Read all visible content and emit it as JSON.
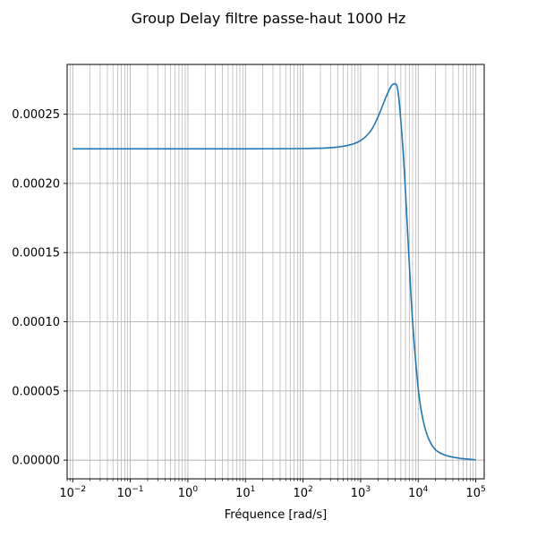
{
  "chart_data": {
    "type": "line",
    "title": "Group Delay filtre passe-haut 1000 Hz",
    "xlabel": "Fréquence [rad/s]",
    "ylabel": "",
    "x_scale": "log",
    "xlim": [
      0.008,
      140000
    ],
    "ylim": [
      -1.35e-05,
      0.000286
    ],
    "grid": "major and minor",
    "line_color": "#1f77b4",
    "x_ticks": [
      {
        "value": 0.01,
        "base": "10",
        "exp": "−2"
      },
      {
        "value": 0.1,
        "base": "10",
        "exp": "−1"
      },
      {
        "value": 1,
        "base": "10",
        "exp": "0"
      },
      {
        "value": 10,
        "base": "10",
        "exp": "1"
      },
      {
        "value": 100,
        "base": "10",
        "exp": "2"
      },
      {
        "value": 1000,
        "base": "10",
        "exp": "3"
      },
      {
        "value": 10000,
        "base": "10",
        "exp": "4"
      },
      {
        "value": 100000,
        "base": "10",
        "exp": "5"
      }
    ],
    "y_ticks": [
      {
        "value": 0.0,
        "label": "0.00000"
      },
      {
        "value": 5e-05,
        "label": "0.00005"
      },
      {
        "value": 0.0001,
        "label": "0.00010"
      },
      {
        "value": 0.00015,
        "label": "0.00015"
      },
      {
        "value": 0.0002,
        "label": "0.00020"
      },
      {
        "value": 0.00025,
        "label": "0.00025"
      }
    ],
    "series": [
      {
        "x": [
          0.01,
          0.1,
          1,
          10,
          100,
          300,
          600,
          1000,
          1500,
          2000,
          2500,
          3000,
          3500,
          4000,
          4300,
          4600,
          5000,
          5500,
          6000,
          7000,
          8000,
          10000,
          12000,
          15000,
          20000,
          30000,
          50000,
          100000
        ],
        "values": [
          0.000225,
          0.000225,
          0.000225,
          0.000225,
          0.0002252,
          0.0002258,
          0.0002275,
          0.000231,
          0.000238,
          0.000248,
          0.000258,
          0.000266,
          0.000271,
          0.000272,
          0.00027,
          0.000262,
          0.000245,
          0.000222,
          0.000195,
          0.000142,
          0.0001,
          5.2e-05,
          3e-05,
          1.6e-05,
          7.5e-06,
          3.5e-06,
          1.5e-06,
          2e-07
        ]
      }
    ]
  }
}
